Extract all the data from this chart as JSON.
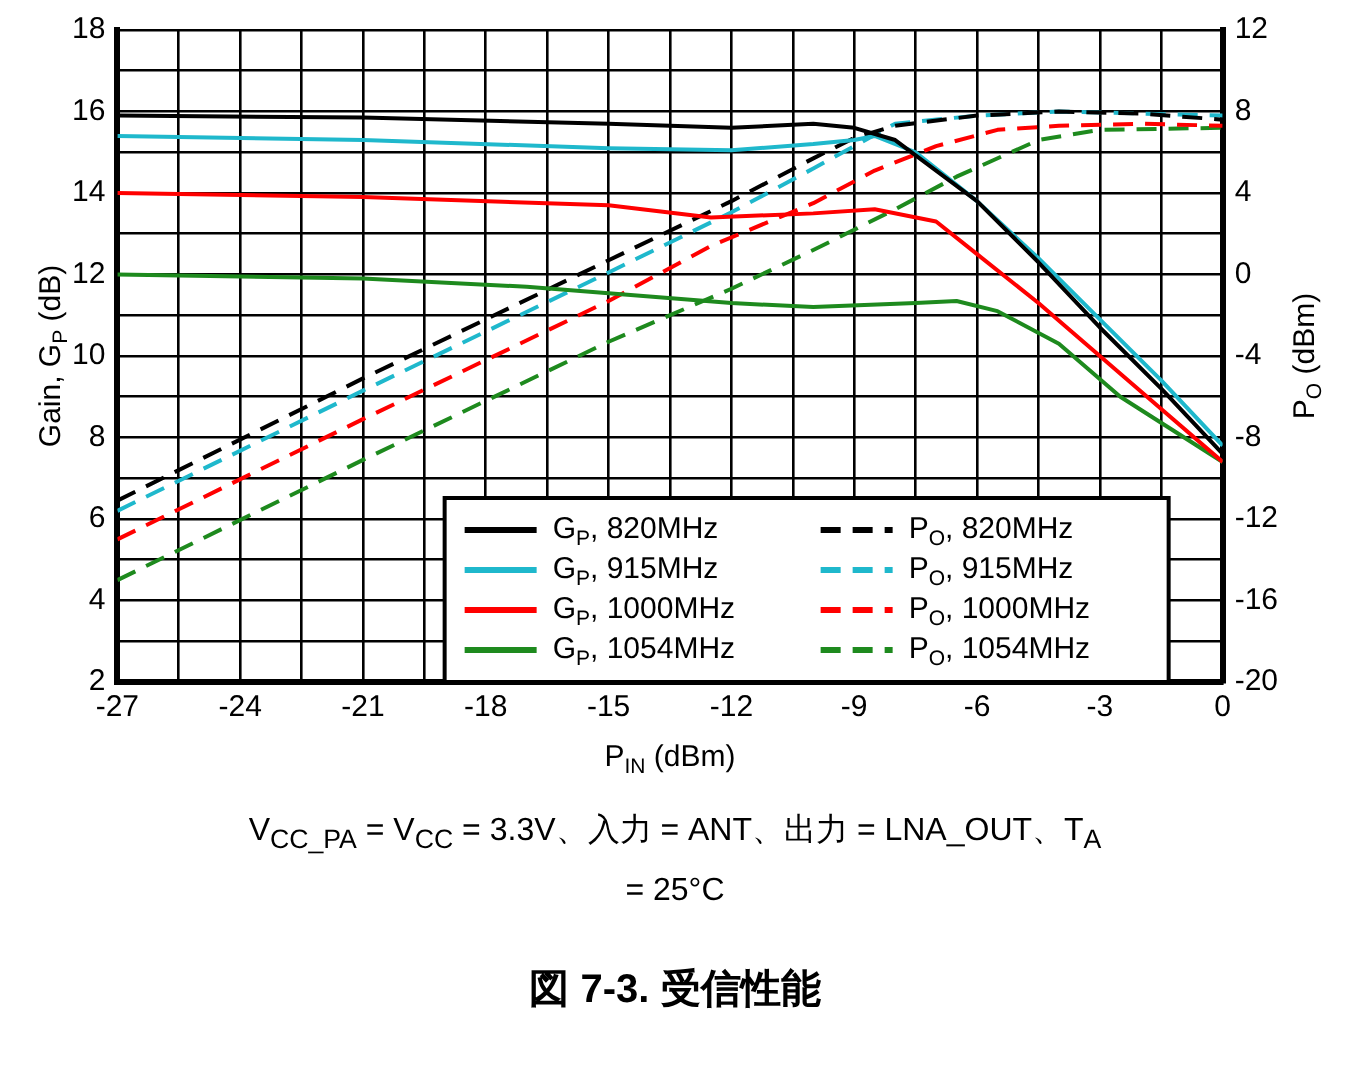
{
  "chart_data": {
    "type": "line",
    "title": "図 7-3. 受信性能",
    "xlabel": "P$_{IN}$ (dBm)",
    "ylabel": "Gain, G$_{P}$ (dB)",
    "y2label": "P$_{O}$ (dBm)",
    "annotations": [
      "V$_{CC_PA}$ = V$_{CC}$ = 3.3V、入力 = ANT、出力 = LNA_OUT、T$_{A}$ = 25°C"
    ],
    "xlim": [
      -27,
      0
    ],
    "xticks": [
      -27,
      {
        "value": -25.5,
        "label": null
      },
      -24,
      {
        "value": -22.5,
        "label": null
      },
      -21,
      {
        "value": -19.5,
        "label": null
      },
      -18,
      {
        "value": -16.5,
        "label": null
      },
      -15,
      {
        "value": -13.5,
        "label": null
      },
      -12,
      {
        "value": -10.5,
        "label": null
      },
      -9,
      {
        "value": -7.5,
        "label": null
      },
      -6,
      {
        "value": -4.5,
        "label": null
      },
      -3,
      {
        "value": -1.5,
        "label": null
      },
      0
    ],
    "ylim": [
      2,
      18
    ],
    "yticks": [
      2,
      {
        "value": 3,
        "label": null
      },
      4,
      {
        "value": 5,
        "label": null
      },
      6,
      {
        "value": 7,
        "label": null
      },
      8,
      {
        "value": 9,
        "label": null
      },
      10,
      {
        "value": 11,
        "label": null
      },
      12,
      {
        "value": 13,
        "label": null
      },
      14,
      {
        "value": 15,
        "label": null
      },
      16,
      {
        "value": 17,
        "label": null
      },
      18
    ],
    "y2lim": [
      -20,
      12
    ],
    "y2ticks": [
      -20,
      -16,
      -12,
      -8,
      -4,
      0,
      4,
      8,
      12
    ],
    "grid": true,
    "legend": "bottom right",
    "marker": "none",
    "series": [
      {
        "name": "G$_{P}$, 820MHz",
        "color": "#000000",
        "line_style": "solid",
        "x": [
          -27,
          -21,
          -15,
          -12,
          -10,
          -9,
          -8,
          -6,
          -4.5,
          -3,
          -1.5,
          0
        ],
        "values": [
          15.9,
          15.85,
          15.7,
          15.6,
          15.7,
          15.6,
          15.3,
          13.8,
          12.3,
          10.7,
          9.2,
          7.6
        ]
      },
      {
        "name": "G$_{P}$, 915MHz",
        "color": "#1fb8cc",
        "line_style": "solid",
        "x": [
          -27,
          -21,
          -15,
          -12,
          -10,
          -9,
          -8.5,
          -7.5,
          -6,
          -4.5,
          -3,
          -1.5,
          0
        ],
        "values": [
          15.4,
          15.3,
          15.1,
          15.05,
          15.2,
          15.3,
          15.4,
          15.0,
          13.8,
          12.4,
          10.9,
          9.4,
          7.8
        ]
      },
      {
        "name": "G$_{P}$, 1000MHz",
        "color": "#ff0000",
        "line_style": "solid",
        "x": [
          -27,
          -21,
          -15,
          -12.5,
          -10,
          -8.5,
          -7,
          -6,
          -4.5,
          -3,
          -1.5,
          0
        ],
        "values": [
          14.0,
          13.9,
          13.7,
          13.4,
          13.5,
          13.6,
          13.3,
          12.5,
          11.3,
          10.0,
          8.7,
          7.4
        ]
      },
      {
        "name": "G$_{P}$, 1054MHz",
        "color": "#1e8a1e",
        "line_style": "solid",
        "x": [
          -27,
          -21,
          -17,
          -12,
          -10,
          -7.5,
          -6.5,
          -5.5,
          -4,
          -2.5,
          0
        ],
        "values": [
          12.0,
          11.9,
          11.7,
          11.3,
          11.2,
          11.3,
          11.35,
          11.1,
          10.3,
          9.0,
          7.4
        ]
      },
      {
        "name": "P$_{O}$, 820MHz",
        "color": "#000000",
        "line_style": "dashed",
        "axis": "y2",
        "x": [
          -27,
          -21,
          -15,
          -12,
          -10,
          -9,
          -8,
          -6,
          -4,
          -2,
          0
        ],
        "values": [
          -11.1,
          -5.1,
          0.7,
          3.6,
          5.7,
          6.7,
          7.3,
          7.8,
          8,
          7.9,
          7.6
        ]
      },
      {
        "name": "P$_{O}$, 915MHz",
        "color": "#1fb8cc",
        "line_style": "dashed",
        "axis": "y2",
        "x": [
          -27,
          -21,
          -15,
          -12,
          -10,
          -9,
          -8,
          -6,
          -4,
          -2,
          0
        ],
        "values": [
          -11.6,
          -5.7,
          0.1,
          3.05,
          5.2,
          6.3,
          7.4,
          7.8,
          8,
          7.9,
          7.8
        ]
      },
      {
        "name": "P$_{O}$, 1000MHz",
        "color": "#ff0000",
        "line_style": "dashed",
        "axis": "y2",
        "x": [
          -27,
          -21,
          -15,
          -12.5,
          -10,
          -8.5,
          -7,
          -5.5,
          -4,
          -2,
          0
        ],
        "values": [
          -13,
          -7.1,
          -1.3,
          1.4,
          3.5,
          5.1,
          6.3,
          7.1,
          7.3,
          7.4,
          7.3
        ]
      },
      {
        "name": "P$_{O}$, 1054MHz",
        "color": "#1e8a1e",
        "line_style": "dashed",
        "axis": "y2",
        "x": [
          -27,
          -21,
          -15,
          -12,
          -10,
          -8,
          -6.5,
          -4.5,
          -3,
          0
        ],
        "values": [
          -15,
          -9.1,
          -3.3,
          -0.7,
          1.2,
          3.2,
          4.8,
          6.6,
          7.1,
          7.2
        ]
      }
    ]
  }
}
